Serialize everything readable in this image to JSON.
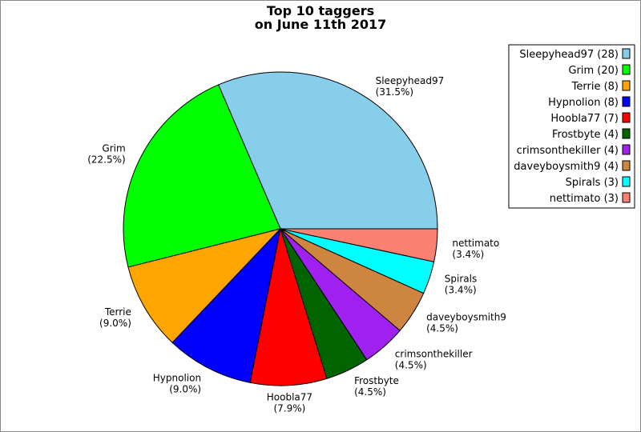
{
  "chart_data": {
    "type": "pie",
    "title_lines": [
      "Top 10 taggers",
      "on June 11th 2017"
    ],
    "start_angle_deg": 0,
    "direction": "counterclockwise",
    "slices": [
      {
        "name": "Sleepyhead97",
        "value": 28,
        "percent": "31.5%",
        "legend": "Sleepyhead97 (28)",
        "color": "#87ceeb"
      },
      {
        "name": "Grim",
        "value": 20,
        "percent": "22.5%",
        "legend": "Grim (20)",
        "color": "#00ff00"
      },
      {
        "name": "Terrie",
        "value": 8,
        "percent": "9.0%",
        "legend": "Terrie (8)",
        "color": "#ffa500"
      },
      {
        "name": "Hypnolion",
        "value": 8,
        "percent": "9.0%",
        "legend": "Hypnolion (8)",
        "color": "#0000ff"
      },
      {
        "name": "Hoobla77",
        "value": 7,
        "percent": "7.9%",
        "legend": "Hoobla77 (7)",
        "color": "#ff0000"
      },
      {
        "name": "Frostbyte",
        "value": 4,
        "percent": "4.5%",
        "legend": "Frostbyte (4)",
        "color": "#006400"
      },
      {
        "name": "crimsonthekiller",
        "value": 4,
        "percent": "4.5%",
        "legend": "crimsonthekiller (4)",
        "color": "#a020f0"
      },
      {
        "name": "daveyboysmith9",
        "value": 4,
        "percent": "4.5%",
        "legend": "daveyboysmith9 (4)",
        "color": "#cd853f"
      },
      {
        "name": "Spirals",
        "value": 3,
        "percent": "3.4%",
        "legend": "Spirals (3)",
        "color": "#00ffff"
      },
      {
        "name": "nettimato",
        "value": 3,
        "percent": "3.4%",
        "legend": "nettimato (3)",
        "color": "#fa8072"
      }
    ],
    "legend_placement": "top-right"
  }
}
